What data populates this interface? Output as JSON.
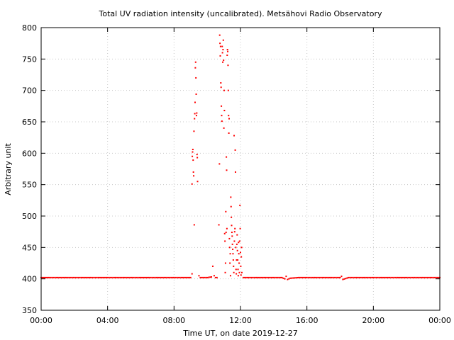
{
  "chart_data": {
    "type": "scatter",
    "title": "Total UV radiation intensity (uncalibrated). Metsähovi Radio Observatory",
    "xlabel": "Time UT, on date 2019-12-27",
    "ylabel": "Arbitrary unit",
    "xlim": [
      "00:00",
      "24:00"
    ],
    "ylim": [
      350,
      800
    ],
    "x_tick_labels": [
      "00:00",
      "04:00",
      "08:00",
      "12:00",
      "16:00",
      "20:00",
      "00:00"
    ],
    "y_tick_labels": [
      "350",
      "400",
      "450",
      "500",
      "550",
      "600",
      "650",
      "700",
      "750",
      "800"
    ],
    "grid": true,
    "colors": {
      "series": "#ff0000",
      "grid": "#c8c8c8",
      "axis": "#000000"
    },
    "series": [
      {
        "points": [
          [
            "00:00",
            402
          ],
          [
            "00:30",
            402
          ],
          [
            "01:00",
            402
          ],
          [
            "01:30",
            402
          ],
          [
            "02:00",
            402
          ],
          [
            "02:30",
            402
          ],
          [
            "03:00",
            402
          ],
          [
            "03:30",
            402
          ],
          [
            "04:00",
            402
          ],
          [
            "04:30",
            402
          ],
          [
            "05:00",
            402
          ],
          [
            "05:30",
            402
          ],
          [
            "06:00",
            402
          ],
          [
            "06:30",
            402
          ],
          [
            "07:00",
            402
          ],
          [
            "07:30",
            402
          ],
          [
            "08:00",
            402
          ],
          [
            "08:30",
            402
          ],
          [
            "09:00",
            402
          ],
          [
            "09:05",
            408
          ],
          [
            "09:05",
            551
          ],
          [
            "09:06",
            595
          ],
          [
            "09:07",
            602
          ],
          [
            "09:08",
            606
          ],
          [
            "09:09",
            589
          ],
          [
            "09:10",
            570
          ],
          [
            "09:11",
            564
          ],
          [
            "09:12",
            635
          ],
          [
            "09:13",
            486
          ],
          [
            "09:14",
            655
          ],
          [
            "09:15",
            663
          ],
          [
            "09:16",
            681
          ],
          [
            "09:17",
            736
          ],
          [
            "09:18",
            745
          ],
          [
            "09:19",
            720
          ],
          [
            "09:20",
            694
          ],
          [
            "09:21",
            660
          ],
          [
            "09:22",
            664
          ],
          [
            "09:23",
            598
          ],
          [
            "09:24",
            593
          ],
          [
            "09:25",
            555
          ],
          [
            "09:30",
            405
          ],
          [
            "09:35",
            402
          ],
          [
            "09:45",
            402
          ],
          [
            "10:00",
            402
          ],
          [
            "10:15",
            403
          ],
          [
            "10:20",
            420
          ],
          [
            "10:25",
            405
          ],
          [
            "10:30",
            402
          ],
          [
            "10:35",
            402
          ],
          [
            "10:42",
            486
          ],
          [
            "10:44",
            583
          ],
          [
            "10:45",
            788
          ],
          [
            "10:46",
            775
          ],
          [
            "10:47",
            755
          ],
          [
            "10:48",
            770
          ],
          [
            "10:49",
            712
          ],
          [
            "10:50",
            705
          ],
          [
            "10:51",
            675
          ],
          [
            "10:52",
            660
          ],
          [
            "10:53",
            651
          ],
          [
            "10:54",
            770
          ],
          [
            "10:55",
            760
          ],
          [
            "10:56",
            745
          ],
          [
            "10:57",
            765
          ],
          [
            "10:58",
            780
          ],
          [
            "10:59",
            748
          ],
          [
            "11:00",
            640
          ],
          [
            "11:01",
            700
          ],
          [
            "11:02",
            668
          ],
          [
            "11:03",
            472
          ],
          [
            "11:04",
            460
          ],
          [
            "11:05",
            410
          ],
          [
            "11:06",
            425
          ],
          [
            "11:07",
            507
          ],
          [
            "11:08",
            474
          ],
          [
            "11:09",
            594
          ],
          [
            "11:10",
            573
          ],
          [
            "11:11",
            480
          ],
          [
            "11:12",
            756
          ],
          [
            "11:13",
            765
          ],
          [
            "11:14",
            762
          ],
          [
            "11:15",
            740
          ],
          [
            "11:16",
            700
          ],
          [
            "11:17",
            660
          ],
          [
            "11:18",
            632
          ],
          [
            "11:19",
            655
          ],
          [
            "11:20",
            464
          ],
          [
            "11:21",
            450
          ],
          [
            "11:22",
            425
          ],
          [
            "11:23",
            440
          ],
          [
            "11:24",
            405
          ],
          [
            "11:25",
            530
          ],
          [
            "11:26",
            515
          ],
          [
            "11:27",
            498
          ],
          [
            "11:28",
            485
          ],
          [
            "11:29",
            474
          ],
          [
            "11:30",
            468
          ],
          [
            "11:31",
            455
          ],
          [
            "11:32",
            447
          ],
          [
            "11:33",
            440
          ],
          [
            "11:34",
            430
          ],
          [
            "11:35",
            420
          ],
          [
            "11:36",
            410
          ],
          [
            "11:37",
            628
          ],
          [
            "11:38",
            460
          ],
          [
            "11:39",
            475
          ],
          [
            "11:40",
            480
          ],
          [
            "11:41",
            605
          ],
          [
            "11:42",
            570
          ],
          [
            "11:43",
            450
          ],
          [
            "11:44",
            415
          ],
          [
            "11:45",
            408
          ],
          [
            "11:46",
            430
          ],
          [
            "11:47",
            455
          ],
          [
            "11:48",
            470
          ],
          [
            "11:49",
            445
          ],
          [
            "11:50",
            430
          ],
          [
            "11:51",
            415
          ],
          [
            "11:52",
            405
          ],
          [
            "11:53",
            458
          ],
          [
            "11:54",
            440
          ],
          [
            "11:55",
            425
          ],
          [
            "11:56",
            410
          ],
          [
            "11:57",
            460
          ],
          [
            "11:58",
            517
          ],
          [
            "11:59",
            480
          ],
          [
            "12:00",
            442
          ],
          [
            "12:01",
            420
          ],
          [
            "12:02",
            406
          ],
          [
            "12:03",
            435
          ],
          [
            "12:04",
            450
          ],
          [
            "12:05",
            410
          ],
          [
            "12:10",
            402
          ],
          [
            "12:30",
            402
          ],
          [
            "13:00",
            402
          ],
          [
            "13:30",
            402
          ],
          [
            "14:00",
            402
          ],
          [
            "14:30",
            402
          ],
          [
            "14:40",
            400
          ],
          [
            "14:45",
            404
          ],
          [
            "14:50",
            399
          ],
          [
            "15:00",
            401
          ],
          [
            "15:30",
            402
          ],
          [
            "16:00",
            402
          ],
          [
            "16:30",
            402
          ],
          [
            "17:00",
            402
          ],
          [
            "17:30",
            402
          ],
          [
            "18:00",
            402
          ],
          [
            "18:05",
            404
          ],
          [
            "18:10",
            399
          ],
          [
            "18:30",
            402
          ],
          [
            "19:00",
            402
          ],
          [
            "19:30",
            402
          ],
          [
            "20:00",
            402
          ],
          [
            "20:30",
            402
          ],
          [
            "21:00",
            402
          ],
          [
            "21:30",
            402
          ],
          [
            "22:00",
            402
          ],
          [
            "22:30",
            402
          ],
          [
            "23:00",
            402
          ],
          [
            "23:30",
            402
          ],
          [
            "24:00",
            402
          ]
        ]
      }
    ]
  }
}
